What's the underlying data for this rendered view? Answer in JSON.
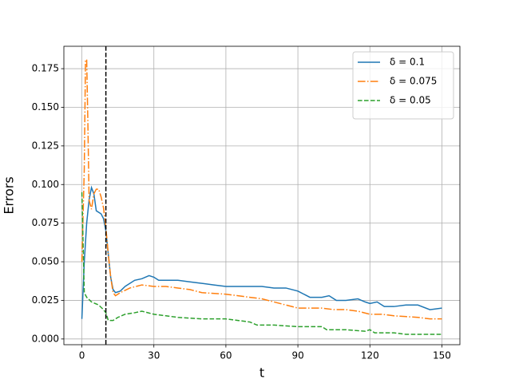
{
  "chart_data": {
    "type": "line",
    "xlabel": "t",
    "ylabel": "Errors",
    "xlim": [
      -7.5,
      157.5
    ],
    "ylim": [
      -0.0037,
      0.1895
    ],
    "xticks": [
      0,
      30,
      60,
      90,
      120,
      150
    ],
    "yticks": [
      {
        "value": 0,
        "label": "0.000"
      },
      {
        "value": 0.025,
        "label": "0.025"
      },
      {
        "value": 0.05,
        "label": "0.050"
      },
      {
        "value": 0.075,
        "label": "0.075"
      },
      {
        "value": 0.1,
        "label": "0.100"
      },
      {
        "value": 0.125,
        "label": "0.125"
      },
      {
        "value": 0.15,
        "label": "0.150"
      },
      {
        "value": 0.175,
        "label": "0.175"
      }
    ],
    "grid": true,
    "legend": "upper right",
    "vline": 10,
    "series": [
      {
        "name": "δ = 0.1",
        "color": "#1f77b4",
        "linestyle": "solid",
        "x": [
          0,
          1,
          2,
          3,
          4,
          5,
          6,
          8,
          9,
          10,
          11,
          12,
          13,
          14,
          16,
          18,
          20,
          22,
          25,
          28,
          30,
          32,
          35,
          40,
          45,
          50,
          55,
          60,
          70,
          75,
          80,
          85,
          90,
          95,
          100,
          103,
          106,
          110,
          115,
          118,
          120,
          123,
          126,
          130,
          135,
          140,
          145,
          150
        ],
        "values": [
          0.013,
          0.05,
          0.075,
          0.09,
          0.098,
          0.094,
          0.083,
          0.081,
          0.078,
          0.07,
          0.055,
          0.04,
          0.032,
          0.03,
          0.031,
          0.034,
          0.036,
          0.038,
          0.039,
          0.041,
          0.04,
          0.038,
          0.038,
          0.038,
          0.037,
          0.036,
          0.035,
          0.034,
          0.034,
          0.034,
          0.033,
          0.033,
          0.031,
          0.027,
          0.027,
          0.028,
          0.025,
          0.025,
          0.026,
          0.024,
          0.023,
          0.024,
          0.021,
          0.021,
          0.022,
          0.022,
          0.019,
          0.02
        ]
      },
      {
        "name": "δ = 0.075",
        "color": "#ff7f0e",
        "linestyle": "dashdot",
        "x": [
          0,
          1,
          1.5,
          2,
          2.5,
          3,
          4,
          5,
          6,
          7,
          8,
          9,
          10,
          11,
          12,
          13,
          14,
          16,
          20,
          25,
          30,
          35,
          40,
          45,
          50,
          60,
          65,
          70,
          75,
          80,
          85,
          90,
          95,
          100,
          105,
          110,
          115,
          120,
          125,
          130,
          140,
          145,
          150
        ],
        "values": [
          0.05,
          0.11,
          0.18,
          0.181,
          0.14,
          0.09,
          0.084,
          0.094,
          0.097,
          0.097,
          0.092,
          0.085,
          0.072,
          0.055,
          0.04,
          0.03,
          0.028,
          0.03,
          0.033,
          0.035,
          0.034,
          0.034,
          0.033,
          0.032,
          0.03,
          0.029,
          0.028,
          0.027,
          0.026,
          0.024,
          0.022,
          0.02,
          0.02,
          0.02,
          0.019,
          0.019,
          0.018,
          0.016,
          0.016,
          0.015,
          0.014,
          0.013,
          0.013
        ]
      },
      {
        "name": "δ = 0.05",
        "color": "#2ca02c",
        "linestyle": "dashed",
        "x": [
          0,
          1,
          2,
          4,
          7,
          9,
          10,
          11,
          13,
          15,
          18,
          22,
          25,
          30,
          35,
          40,
          50,
          60,
          65,
          70,
          73,
          80,
          90,
          100,
          102,
          110,
          118,
          120,
          122,
          130,
          135,
          150
        ],
        "values": [
          0.095,
          0.03,
          0.027,
          0.024,
          0.022,
          0.019,
          0.017,
          0.012,
          0.012,
          0.014,
          0.016,
          0.017,
          0.018,
          0.016,
          0.015,
          0.014,
          0.013,
          0.013,
          0.012,
          0.011,
          0.009,
          0.009,
          0.008,
          0.008,
          0.006,
          0.006,
          0.005,
          0.006,
          0.004,
          0.004,
          0.003,
          0.003
        ]
      }
    ]
  }
}
